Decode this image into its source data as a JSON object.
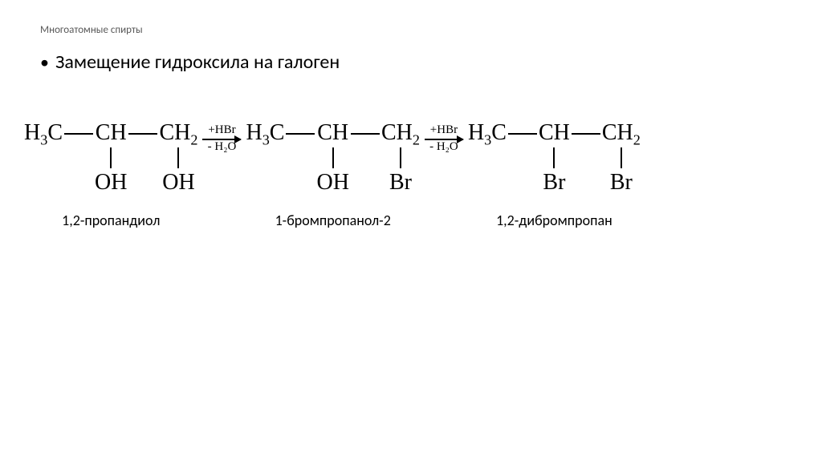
{
  "header": "Многоатомные спирты",
  "bullet": "Замещение гидроксила на галоген",
  "reagent_top": "+HBr",
  "reagent_bottom": "- H₂O",
  "mol1": {
    "c1": "H₃C",
    "c2": "CH",
    "c3": "CH₂",
    "s2": "OH",
    "s3": "OH",
    "name": "1,2-пропандиол"
  },
  "mol2": {
    "c1": "H₃C",
    "c2": "CH",
    "c3": "CH₂",
    "s2": "OH",
    "s3": "Br",
    "name": "1-бромпропанол-2"
  },
  "mol3": {
    "c1": "H₃C",
    "c2": "CH",
    "c3": "CH₂",
    "s2": "Br",
    "s3": "Br",
    "name": "1,2-дибромпропан"
  }
}
